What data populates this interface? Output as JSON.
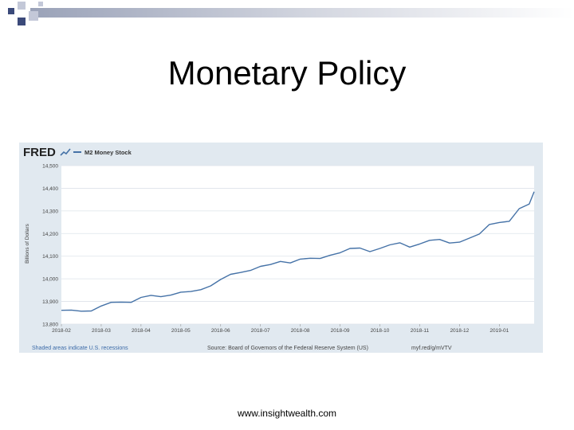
{
  "slide": {
    "title": "Monetary Policy",
    "footer": "www.insightwealth.com"
  },
  "fred": {
    "logo_text": "FRED",
    "logo_icon": "chart-line-icon",
    "series_legend": "M2 Money Stock",
    "shaded_note": "Shaded areas indicate U.S. recessions",
    "source": "Source: Board of Governors of the Federal Reserve System (US)",
    "short_url": "myf.red/g/mVTV"
  },
  "colors": {
    "panel_bg": "#e1e9f0",
    "plot_bg": "#ffffff",
    "line": "#4572a7",
    "link_blue": "#3c6ba8"
  },
  "chart_data": {
    "type": "line",
    "title": "",
    "xlabel": "",
    "ylabel": "Billions of Dollars",
    "ylim": [
      13800,
      14500
    ],
    "y_ticks": [
      13800,
      13900,
      14000,
      14100,
      14200,
      14300,
      14400,
      14500
    ],
    "y_tick_labels": [
      "13,800",
      "13,900",
      "14,000",
      "14,100",
      "14,200",
      "14,300",
      "14,400",
      "14,500"
    ],
    "x_ticks": [
      0,
      4,
      8,
      12,
      16,
      20,
      24,
      28,
      32,
      36,
      40,
      44
    ],
    "x_tick_labels": [
      "2018-02",
      "2018-03",
      "2018-04",
      "2018-05",
      "2018-06",
      "2018-07",
      "2018-08",
      "2018-09",
      "2018-10",
      "2018-11",
      "2018-12",
      "2019-01"
    ],
    "xlim": [
      0,
      47.5
    ],
    "grid": true,
    "series": [
      {
        "name": "M2 Money Stock",
        "x": [
          0,
          1,
          2,
          3,
          4,
          5,
          6,
          7,
          8,
          9,
          10,
          11,
          12,
          13,
          14,
          15,
          16,
          17,
          18,
          19,
          20,
          21,
          22,
          23,
          24,
          25,
          26,
          27,
          28,
          29,
          30,
          31,
          32,
          33,
          34,
          35,
          36,
          37,
          38,
          39,
          40,
          41,
          42,
          43,
          44,
          45,
          46,
          47,
          47.5
        ],
        "values": [
          13861,
          13862,
          13857,
          13858,
          13880,
          13896,
          13897,
          13896,
          13918,
          13927,
          13921,
          13928,
          13941,
          13944,
          13952,
          13969,
          13997,
          14020,
          14028,
          14037,
          14055,
          14063,
          14077,
          14070,
          14087,
          14091,
          14090,
          14104,
          14115,
          14134,
          14136,
          14120,
          14134,
          14150,
          14159,
          14140,
          14154,
          14170,
          14174,
          14158,
          14162,
          14180,
          14198,
          14240,
          14249,
          14254,
          14310,
          14330,
          14385
        ]
      }
    ]
  }
}
